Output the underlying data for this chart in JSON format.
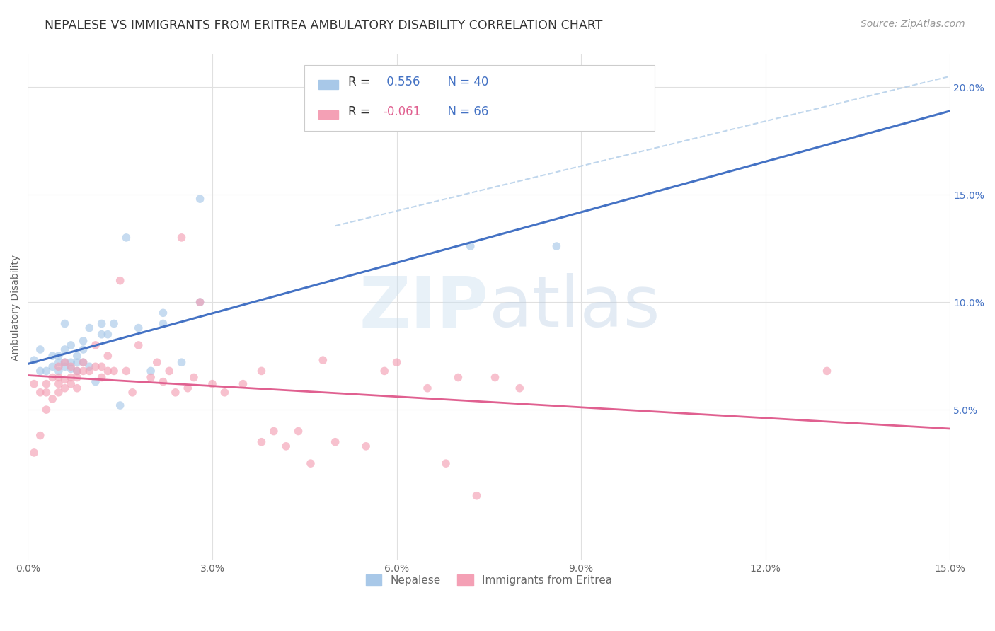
{
  "title": "NEPALESE VS IMMIGRANTS FROM ERITREA AMBULATORY DISABILITY CORRELATION CHART",
  "source": "Source: ZipAtlas.com",
  "ylabel": "Ambulatory Disability",
  "watermark_zip": "ZIP",
  "watermark_atlas": "atlas",
  "xlim": [
    0.0,
    0.15
  ],
  "ylim": [
    -0.02,
    0.215
  ],
  "xticks": [
    0.0,
    0.03,
    0.06,
    0.09,
    0.12,
    0.15
  ],
  "yticks_right": [
    0.05,
    0.1,
    0.15,
    0.2
  ],
  "color_blue": "#a8c8e8",
  "color_pink": "#f4a0b5",
  "line_color_blue": "#4472c4",
  "line_color_pink": "#e06090",
  "dash_color": "#b0cce8",
  "nepalese_x": [
    0.001,
    0.002,
    0.002,
    0.003,
    0.004,
    0.004,
    0.005,
    0.005,
    0.005,
    0.006,
    0.006,
    0.006,
    0.006,
    0.007,
    0.007,
    0.007,
    0.008,
    0.008,
    0.008,
    0.009,
    0.009,
    0.009,
    0.01,
    0.01,
    0.011,
    0.012,
    0.012,
    0.013,
    0.014,
    0.015,
    0.016,
    0.018,
    0.02,
    0.022,
    0.022,
    0.025,
    0.028,
    0.028,
    0.072,
    0.086
  ],
  "nepalese_y": [
    0.073,
    0.068,
    0.078,
    0.068,
    0.07,
    0.075,
    0.072,
    0.075,
    0.068,
    0.07,
    0.072,
    0.078,
    0.09,
    0.069,
    0.072,
    0.08,
    0.068,
    0.072,
    0.075,
    0.072,
    0.078,
    0.082,
    0.07,
    0.088,
    0.063,
    0.09,
    0.085,
    0.085,
    0.09,
    0.052,
    0.13,
    0.088,
    0.068,
    0.095,
    0.09,
    0.072,
    0.148,
    0.1,
    0.126,
    0.126
  ],
  "eritrea_x": [
    0.001,
    0.001,
    0.002,
    0.002,
    0.003,
    0.003,
    0.003,
    0.004,
    0.004,
    0.005,
    0.005,
    0.005,
    0.005,
    0.006,
    0.006,
    0.006,
    0.007,
    0.007,
    0.007,
    0.008,
    0.008,
    0.008,
    0.009,
    0.009,
    0.01,
    0.011,
    0.011,
    0.012,
    0.012,
    0.013,
    0.013,
    0.014,
    0.015,
    0.016,
    0.017,
    0.018,
    0.02,
    0.021,
    0.022,
    0.023,
    0.024,
    0.025,
    0.026,
    0.027,
    0.028,
    0.03,
    0.032,
    0.035,
    0.038,
    0.04,
    0.042,
    0.044,
    0.046,
    0.048,
    0.05,
    0.055,
    0.058,
    0.06,
    0.065,
    0.068,
    0.07,
    0.073,
    0.076,
    0.08,
    0.13,
    0.038
  ],
  "eritrea_y": [
    0.062,
    0.03,
    0.058,
    0.038,
    0.062,
    0.05,
    0.058,
    0.055,
    0.065,
    0.058,
    0.062,
    0.065,
    0.07,
    0.06,
    0.064,
    0.072,
    0.062,
    0.065,
    0.07,
    0.06,
    0.065,
    0.068,
    0.068,
    0.072,
    0.068,
    0.07,
    0.08,
    0.065,
    0.07,
    0.068,
    0.075,
    0.068,
    0.11,
    0.068,
    0.058,
    0.08,
    0.065,
    0.072,
    0.063,
    0.068,
    0.058,
    0.13,
    0.06,
    0.065,
    0.1,
    0.062,
    0.058,
    0.062,
    0.035,
    0.04,
    0.033,
    0.04,
    0.025,
    0.073,
    0.035,
    0.033,
    0.068,
    0.072,
    0.06,
    0.025,
    0.065,
    0.01,
    0.065,
    0.06,
    0.068,
    0.068
  ],
  "background_color": "#ffffff",
  "grid_color": "#e0e0e0",
  "title_fontsize": 12.5,
  "axis_label_fontsize": 10,
  "tick_fontsize": 10,
  "legend_fontsize": 11,
  "source_fontsize": 10,
  "marker_size": 70,
  "marker_alpha": 0.65,
  "legend_bottom": [
    "Nepalese",
    "Immigrants from Eritrea"
  ],
  "legend_r1_prefix": "R = ",
  "legend_r1_value": " 0.556",
  "legend_r1_n": "  N = 40",
  "legend_r2_prefix": "R = ",
  "legend_r2_value": "-0.061",
  "legend_r2_n": "  N = 66"
}
